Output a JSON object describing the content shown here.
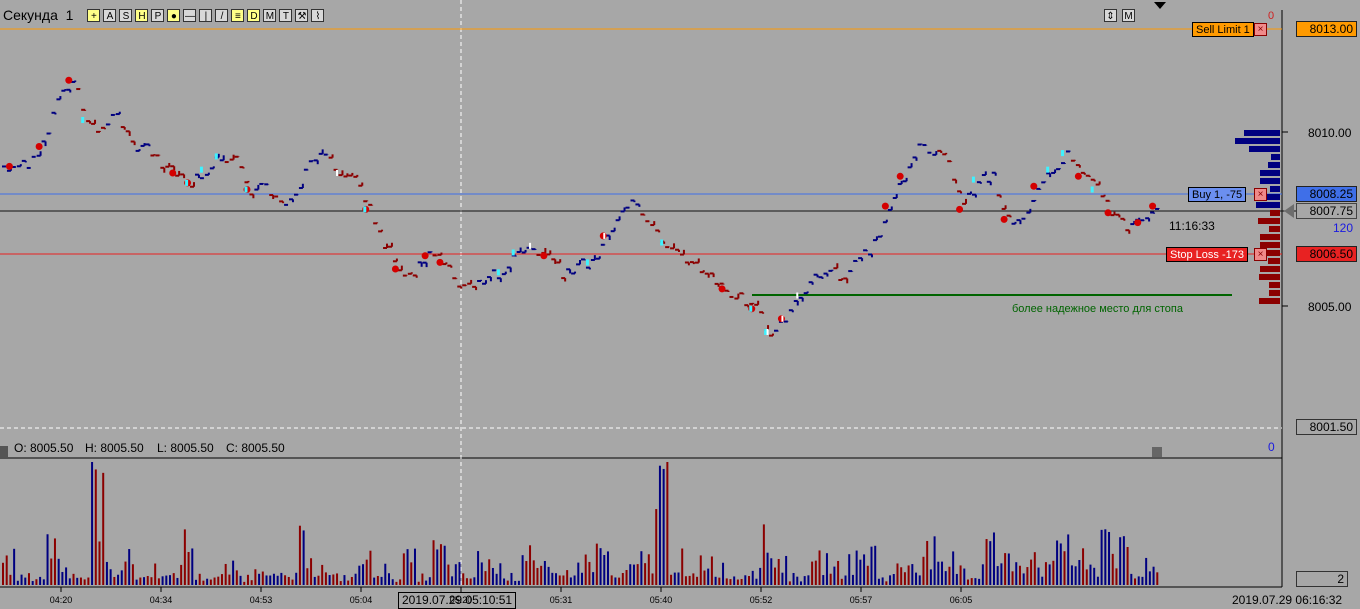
{
  "chart_window": {
    "symbol": "Секунда",
    "period": "1",
    "toolbar_buttons": [
      "+",
      "A",
      "S",
      "H",
      "P",
      "●",
      "—",
      "|",
      "/",
      "≡",
      "D",
      "M",
      "T",
      "⚒",
      "⌇"
    ],
    "right_buttons": [
      "⇕",
      "M"
    ],
    "ohlc": {
      "o": "O: 8005.50",
      "h": "H: 8005.50",
      "l": "L: 8005.50",
      "c": "C: 8005.50"
    },
    "cursor_time": "2019.07.29 05:10:51",
    "bottom_right_datetime": "2019.07.29 06:16:32",
    "clock": "11:16:33",
    "tick_count": "120",
    "top_right_zero": "0",
    "mid_right_zero": "0",
    "volume_axis_value": "2",
    "annotation": "более надежное место для стопа"
  },
  "orders": {
    "sell_limit": {
      "label": "Sell Limit  1",
      "price": "8013.00",
      "color": "#ff9a00"
    },
    "buy": {
      "label": "Buy  1,  -75",
      "price": "8008.25",
      "color": "#3f6fe8"
    },
    "stop_loss": {
      "label": "Stop Loss  -173",
      "price": "8006.50",
      "color": "#e82222"
    },
    "last_price": "8007.75",
    "low_marker": "8001.50",
    "close_icon": "×"
  },
  "colors": {
    "up": "#000080",
    "down": "#8b0000",
    "background": "#a7a7a7",
    "stop_line": "#006400"
  },
  "chart_data": {
    "type": "line",
    "x_tick_labels": [
      "04:20",
      "04:34",
      "04:53",
      "05:04",
      "05:20",
      "05:31",
      "05:40",
      "05:52",
      "05:57",
      "06:05"
    ],
    "y_tick_labels": [
      "8010.00",
      "8005.00"
    ],
    "ylim": [
      8001.0,
      8013.5
    ],
    "price_approx": [
      8008.9,
      8009.0,
      8009.5,
      8011.0,
      8011.5,
      8010.3,
      8010.0,
      8010.5,
      8009.5,
      8009.6,
      8009.0,
      8008.7,
      8008.4,
      8008.8,
      8009.2,
      8009.1,
      8008.2,
      8008.4,
      8007.7,
      8007.9,
      8009.0,
      8009.3,
      8008.7,
      8008.5,
      8007.6,
      8006.6,
      8005.8,
      8005.7,
      8006.2,
      8006.0,
      8005.4,
      8005.3,
      8005.6,
      8005.7,
      8006.3,
      8006.5,
      8006.2,
      8005.7,
      8005.9,
      8006.0,
      8006.8,
      8007.6,
      8007.8,
      8007.0,
      8006.6,
      8006.3,
      8005.9,
      8005.6,
      8005.2,
      8004.9,
      8004.6,
      8003.9,
      8004.3,
      8005.0,
      8005.6,
      8005.8,
      8005.4,
      8006.2,
      8006.5,
      8007.7,
      8008.6,
      8009.4,
      8009.4,
      8009.0,
      8007.6,
      8008.5,
      8008.6,
      8007.3,
      8007.3,
      8008.3,
      8008.8,
      8009.3,
      8008.6,
      8008.2,
      8007.5,
      8007.1,
      8007.2,
      8007.7
    ],
    "volume_approx": [
      3,
      1,
      1,
      5,
      2,
      1,
      12,
      2,
      3,
      1,
      2,
      1,
      5,
      1,
      1,
      2,
      1,
      3,
      1,
      1,
      5,
      2,
      1,
      1,
      3,
      2,
      1,
      3,
      1,
      4,
      2,
      1,
      3,
      2,
      1,
      5,
      2,
      1,
      2,
      3,
      4,
      1,
      2,
      3,
      12,
      3,
      1,
      3,
      2,
      1,
      2,
      5,
      3,
      1,
      2,
      3,
      2,
      3,
      4,
      1,
      2,
      3,
      4,
      2,
      3,
      1,
      5,
      3,
      3,
      4,
      2,
      6,
      3,
      2,
      7,
      4,
      1,
      3
    ]
  }
}
